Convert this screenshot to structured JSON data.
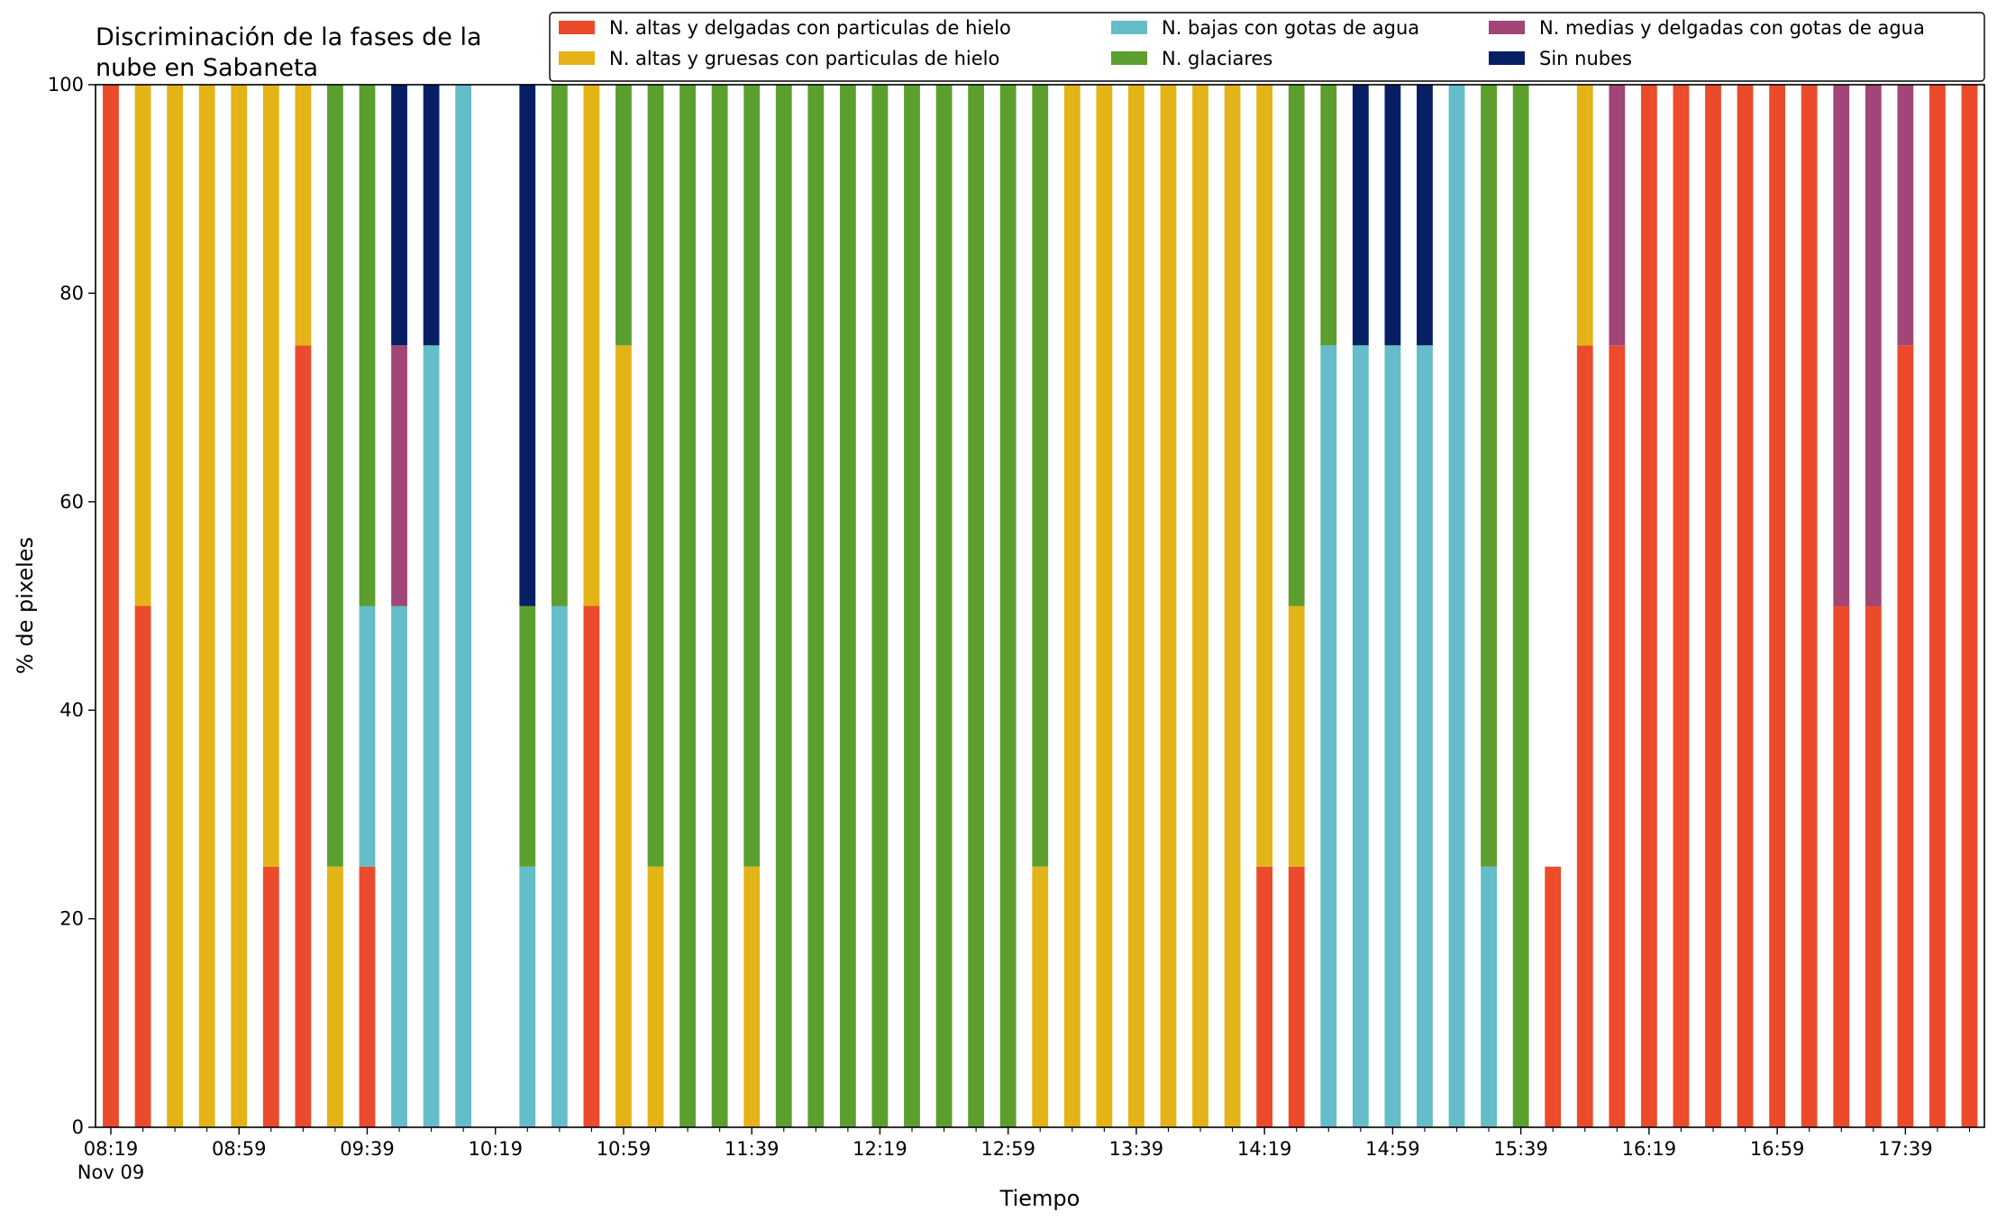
{
  "chart_data": {
    "type": "bar",
    "stacked": true,
    "title_lines": [
      "Discriminación de la fases de la",
      "nube en Sabaneta"
    ],
    "xlabel": "Tiempo",
    "ylabel": "% de pixeles",
    "ylim": [
      0,
      100
    ],
    "y_ticks": [
      "0",
      "20",
      "40",
      "60",
      "80",
      "100"
    ],
    "x_tick_labels": [
      "08:19",
      "08:59",
      "09:39",
      "10:19",
      "10:59",
      "11:39",
      "12:19",
      "12:59",
      "13:39",
      "14:19",
      "14:59",
      "15:39",
      "16:19",
      "16:59",
      "17:39"
    ],
    "x_sublabel": "Nov 09",
    "legend_position": "top-right",
    "series": [
      {
        "name": "N. altas y delgadas con particulas de hielo",
        "color": "#ec4b2b",
        "values": [
          100,
          50,
          0,
          0,
          0,
          25,
          75,
          0,
          25,
          0,
          0,
          0,
          0,
          0,
          0,
          50,
          0,
          0,
          0,
          0,
          0,
          0,
          0,
          0,
          0,
          0,
          0,
          0,
          0,
          0,
          0,
          0,
          0,
          0,
          0,
          0,
          25,
          25,
          0,
          0,
          0,
          0,
          0,
          0,
          0,
          25,
          75,
          75,
          100,
          100,
          100,
          100,
          100,
          100,
          50,
          50,
          75,
          100,
          100
        ]
      },
      {
        "name": "N. altas y gruesas con particulas de hielo",
        "color": "#e4b317",
        "values": [
          0,
          50,
          100,
          100,
          100,
          75,
          25,
          25,
          0,
          0,
          0,
          0,
          0,
          0,
          0,
          50,
          75,
          25,
          0,
          0,
          25,
          0,
          0,
          0,
          0,
          0,
          0,
          0,
          0,
          25,
          100,
          100,
          100,
          100,
          100,
          100,
          75,
          25,
          0,
          0,
          0,
          0,
          0,
          0,
          0,
          0,
          25,
          0,
          0,
          0,
          0,
          0,
          0,
          0,
          0,
          0,
          0,
          0,
          0
        ]
      },
      {
        "name": "N. bajas con gotas de agua",
        "color": "#64bdc8",
        "values": [
          0,
          0,
          0,
          0,
          0,
          0,
          0,
          0,
          25,
          50,
          75,
          100,
          0,
          25,
          50,
          0,
          0,
          0,
          0,
          0,
          0,
          0,
          0,
          0,
          0,
          0,
          0,
          0,
          0,
          0,
          0,
          0,
          0,
          0,
          0,
          0,
          0,
          0,
          75,
          75,
          75,
          75,
          100,
          25,
          0,
          0,
          0,
          0,
          0,
          0,
          0,
          0,
          0,
          0,
          0,
          0,
          0,
          0,
          0
        ]
      },
      {
        "name": "N. glaciares",
        "color": "#5c9f2e",
        "values": [
          0,
          0,
          0,
          0,
          0,
          0,
          0,
          75,
          50,
          0,
          0,
          0,
          0,
          25,
          50,
          0,
          25,
          75,
          100,
          100,
          75,
          100,
          100,
          100,
          100,
          100,
          100,
          100,
          100,
          75,
          0,
          0,
          0,
          0,
          0,
          0,
          0,
          50,
          25,
          0,
          0,
          0,
          0,
          75,
          100,
          0,
          0,
          0,
          0,
          0,
          0,
          0,
          0,
          0,
          0,
          0,
          0,
          0,
          0
        ]
      },
      {
        "name": "N. medias y delgadas con gotas de agua",
        "color": "#a24577",
        "values": [
          0,
          0,
          0,
          0,
          0,
          0,
          0,
          0,
          0,
          25,
          0,
          0,
          0,
          0,
          0,
          0,
          0,
          0,
          0,
          0,
          0,
          0,
          0,
          0,
          0,
          0,
          0,
          0,
          0,
          0,
          0,
          0,
          0,
          0,
          0,
          0,
          0,
          0,
          0,
          0,
          0,
          0,
          0,
          0,
          0,
          0,
          0,
          25,
          0,
          0,
          0,
          0,
          0,
          0,
          50,
          50,
          25,
          0,
          0
        ]
      },
      {
        "name": "Sin nubes",
        "color": "#062063",
        "values": [
          0,
          0,
          0,
          0,
          0,
          0,
          0,
          0,
          0,
          25,
          25,
          0,
          0,
          50,
          0,
          0,
          0,
          0,
          0,
          0,
          0,
          0,
          0,
          0,
          0,
          0,
          0,
          0,
          0,
          0,
          0,
          0,
          0,
          0,
          0,
          0,
          0,
          0,
          0,
          25,
          25,
          25,
          0,
          0,
          0,
          0,
          0,
          0,
          0,
          0,
          0,
          0,
          0,
          0,
          0,
          0,
          0,
          0,
          0
        ]
      }
    ]
  }
}
